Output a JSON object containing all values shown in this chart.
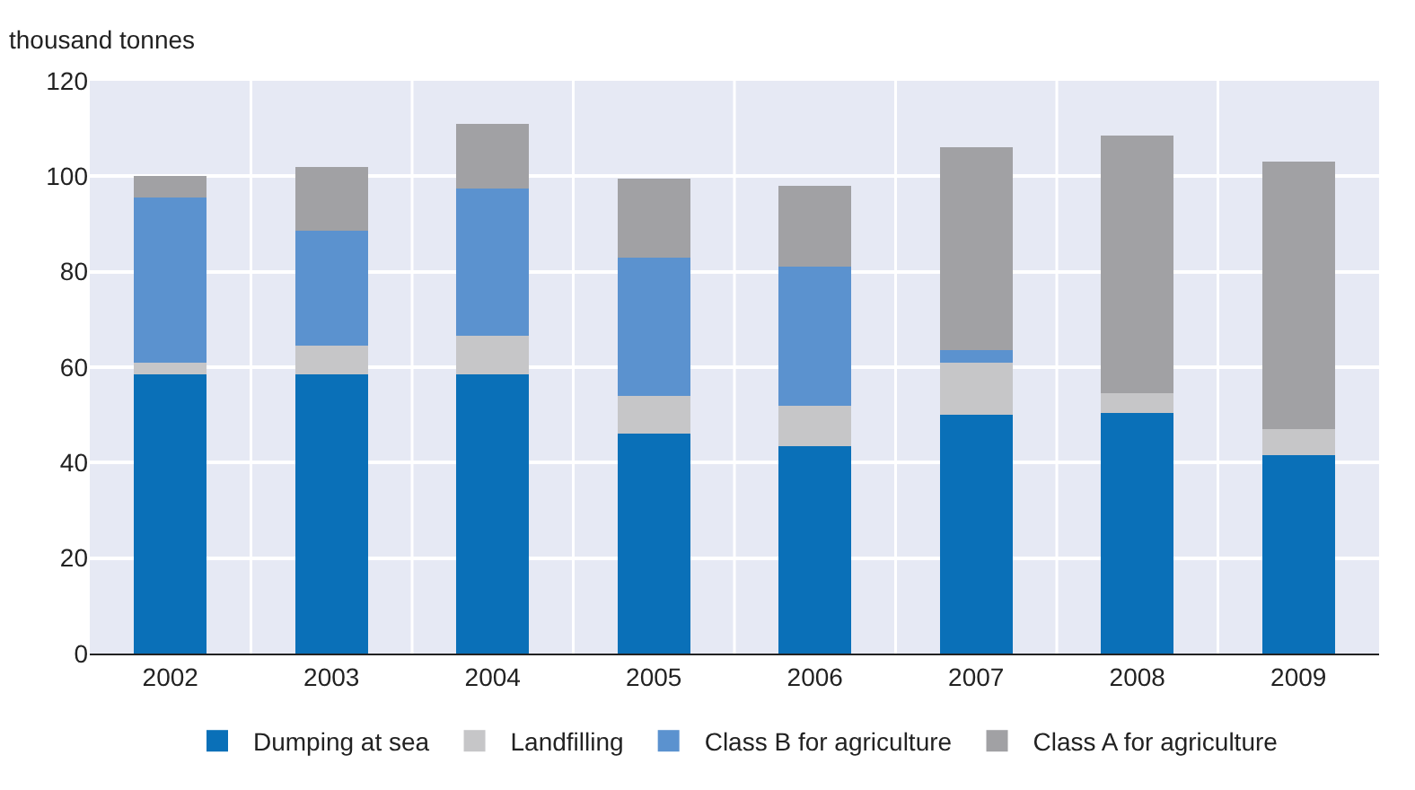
{
  "chart_data": {
    "type": "bar",
    "stacked": true,
    "ylabel": "thousand tonnes",
    "categories": [
      "2002",
      "2003",
      "2004",
      "2005",
      "2006",
      "2007",
      "2008",
      "2009"
    ],
    "series": [
      {
        "name": "Dumping at sea",
        "color": "#0a70b8",
        "values": [
          58.5,
          58.5,
          58.5,
          46,
          43.5,
          50,
          50.5,
          41.5
        ]
      },
      {
        "name": "Landfilling",
        "color": "#c6c6c8",
        "values": [
          2.5,
          6,
          8,
          8,
          8.5,
          11,
          4,
          5.5
        ]
      },
      {
        "name": "Class B for agriculture",
        "color": "#5b92cf",
        "values": [
          34.5,
          24,
          31,
          29,
          29,
          2.5,
          0,
          0
        ]
      },
      {
        "name": "Class A for agriculture",
        "color": "#a1a1a4",
        "values": [
          4.5,
          13.5,
          13.5,
          16.5,
          17,
          42.5,
          54,
          56
        ]
      }
    ],
    "ylim": [
      0,
      120
    ],
    "yticks": [
      0,
      20,
      40,
      60,
      80,
      100,
      120
    ],
    "grid": true,
    "legend": "bottom"
  }
}
